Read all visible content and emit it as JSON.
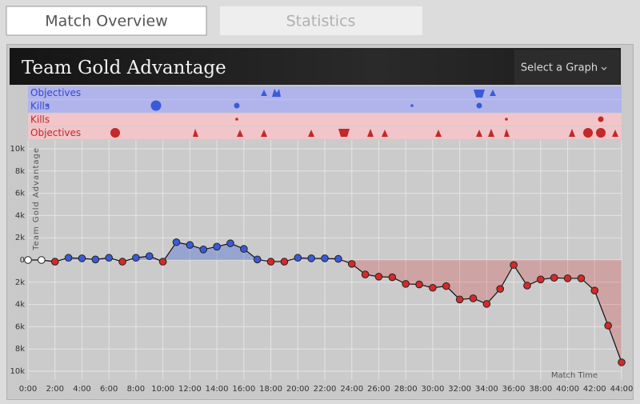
{
  "tabs": [
    "Match Overview",
    "Statistics"
  ],
  "header": {
    "select": "Select a Graph"
  },
  "chart_data": {
    "type": "line",
    "title": "Team Gold Advantage",
    "y_label": "Team Gold Advantage",
    "x_label": "Match Time",
    "event_rows": [
      {
        "name": "Objectives",
        "team": "blue"
      },
      {
        "name": "Kills",
        "team": "blue"
      },
      {
        "name": "Kills",
        "team": "red"
      },
      {
        "name": "Objectives",
        "team": "red"
      }
    ],
    "x": [
      0,
      1,
      2,
      3,
      4,
      5,
      6,
      7,
      8,
      9,
      10,
      11,
      12,
      13,
      14,
      15,
      16,
      17,
      18,
      19,
      20,
      21,
      22,
      23,
      24,
      25,
      26,
      27,
      28,
      29,
      30,
      31,
      32,
      33,
      34,
      35,
      36,
      37,
      38,
      39,
      40,
      41,
      42,
      43,
      44
    ],
    "values": [
      0,
      0,
      -150,
      200,
      150,
      50,
      200,
      -150,
      200,
      350,
      -150,
      1600,
      1350,
      950,
      1200,
      1500,
      1000,
      50,
      -150,
      -150,
      200,
      150,
      150,
      100,
      -350,
      -1300,
      -1500,
      -1550,
      -2150,
      -2200,
      -2500,
      -2350,
      -3550,
      -3450,
      -3950,
      -2600,
      -450,
      -2300,
      -1750,
      -1600,
      -1650,
      -1650,
      -2750,
      -5900,
      -9200
    ],
    "positive_color": "#3a5bd9",
    "negative_color": "#d42a2a",
    "zero_color": "#ffffff",
    "line_color": "#111111",
    "xlim": [
      0,
      44
    ],
    "ylim": [
      -10000,
      10000
    ],
    "xticks": [
      {
        "value": 0,
        "label": "0:00"
      },
      {
        "value": 2,
        "label": "2:00"
      },
      {
        "value": 4,
        "label": "4:00"
      },
      {
        "value": 6,
        "label": "6:00"
      },
      {
        "value": 8,
        "label": "8:00"
      },
      {
        "value": 10,
        "label": "10:00"
      },
      {
        "value": 12,
        "label": "12:00"
      },
      {
        "value": 14,
        "label": "14:00"
      },
      {
        "value": 16,
        "label": "16:00"
      },
      {
        "value": 18,
        "label": "18:00"
      },
      {
        "value": 20,
        "label": "20:00"
      },
      {
        "value": 22,
        "label": "22:00"
      },
      {
        "value": 24,
        "label": "24:00"
      },
      {
        "value": 26,
        "label": "26:00"
      },
      {
        "value": 28,
        "label": "28:00"
      },
      {
        "value": 30,
        "label": "30:00"
      },
      {
        "value": 32,
        "label": "32:00"
      },
      {
        "value": 34,
        "label": "34:00"
      },
      {
        "value": 36,
        "label": "36:00"
      },
      {
        "value": 38,
        "label": "38:00"
      },
      {
        "value": 40,
        "label": "40:00"
      },
      {
        "value": 42,
        "label": "42:00"
      },
      {
        "value": 44,
        "label": "44:00"
      }
    ],
    "yticks": [
      {
        "value": 10000,
        "label": "10k"
      },
      {
        "value": 8000,
        "label": "8k"
      },
      {
        "value": 6000,
        "label": "6k"
      },
      {
        "value": 4000,
        "label": "4k"
      },
      {
        "value": 2000,
        "label": "2k"
      },
      0,
      {
        "value": -2000,
        "label": "2k"
      },
      {
        "value": -4000,
        "label": "4k"
      },
      {
        "value": -6000,
        "label": "6k"
      },
      {
        "value": -8000,
        "label": "8k"
      },
      {
        "value": -10000,
        "label": "10k"
      }
    ],
    "grid": true
  }
}
